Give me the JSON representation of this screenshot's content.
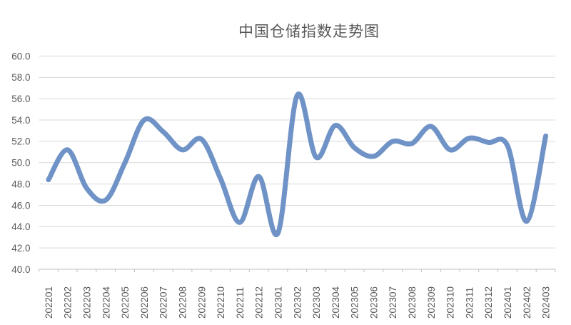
{
  "title": "中国仓储指数走势图",
  "colors": {
    "line": "#7093C7",
    "grid": "#D9D9D9",
    "axis": "#BFBFBF",
    "text": "#595959",
    "background": "#FFFFFF"
  },
  "chart_data": {
    "type": "line",
    "smooth": true,
    "title": "中国仓储指数走势图",
    "categories": [
      "202201",
      "202202",
      "202203",
      "202204",
      "202205",
      "202206",
      "202207",
      "202208",
      "202209",
      "202210",
      "202211",
      "202212",
      "202301",
      "202302",
      "202303",
      "202304",
      "202305",
      "202306",
      "202307",
      "202308",
      "202309",
      "202310",
      "202311",
      "202312",
      "202401",
      "202402",
      "202403"
    ],
    "series": [
      {
        "name": "中国仓储指数",
        "values": [
          48.4,
          51.2,
          47.6,
          46.5,
          50.0,
          54.0,
          52.9,
          51.2,
          52.2,
          48.5,
          44.4,
          48.7,
          43.4,
          56.3,
          50.5,
          53.5,
          51.4,
          50.6,
          52.0,
          51.8,
          53.4,
          51.2,
          52.3,
          51.9,
          51.6,
          44.5,
          52.5
        ]
      }
    ],
    "xlabel": "",
    "ylabel": "",
    "ylim": [
      40.0,
      60.0
    ],
    "ytick_step": 2.0,
    "yticks": [
      "60.0",
      "58.0",
      "56.0",
      "54.0",
      "52.0",
      "50.0",
      "48.0",
      "46.0",
      "44.0",
      "42.0",
      "40.0"
    ],
    "x_label_rotation": -90,
    "grid": "horizontal",
    "legend": "none"
  }
}
